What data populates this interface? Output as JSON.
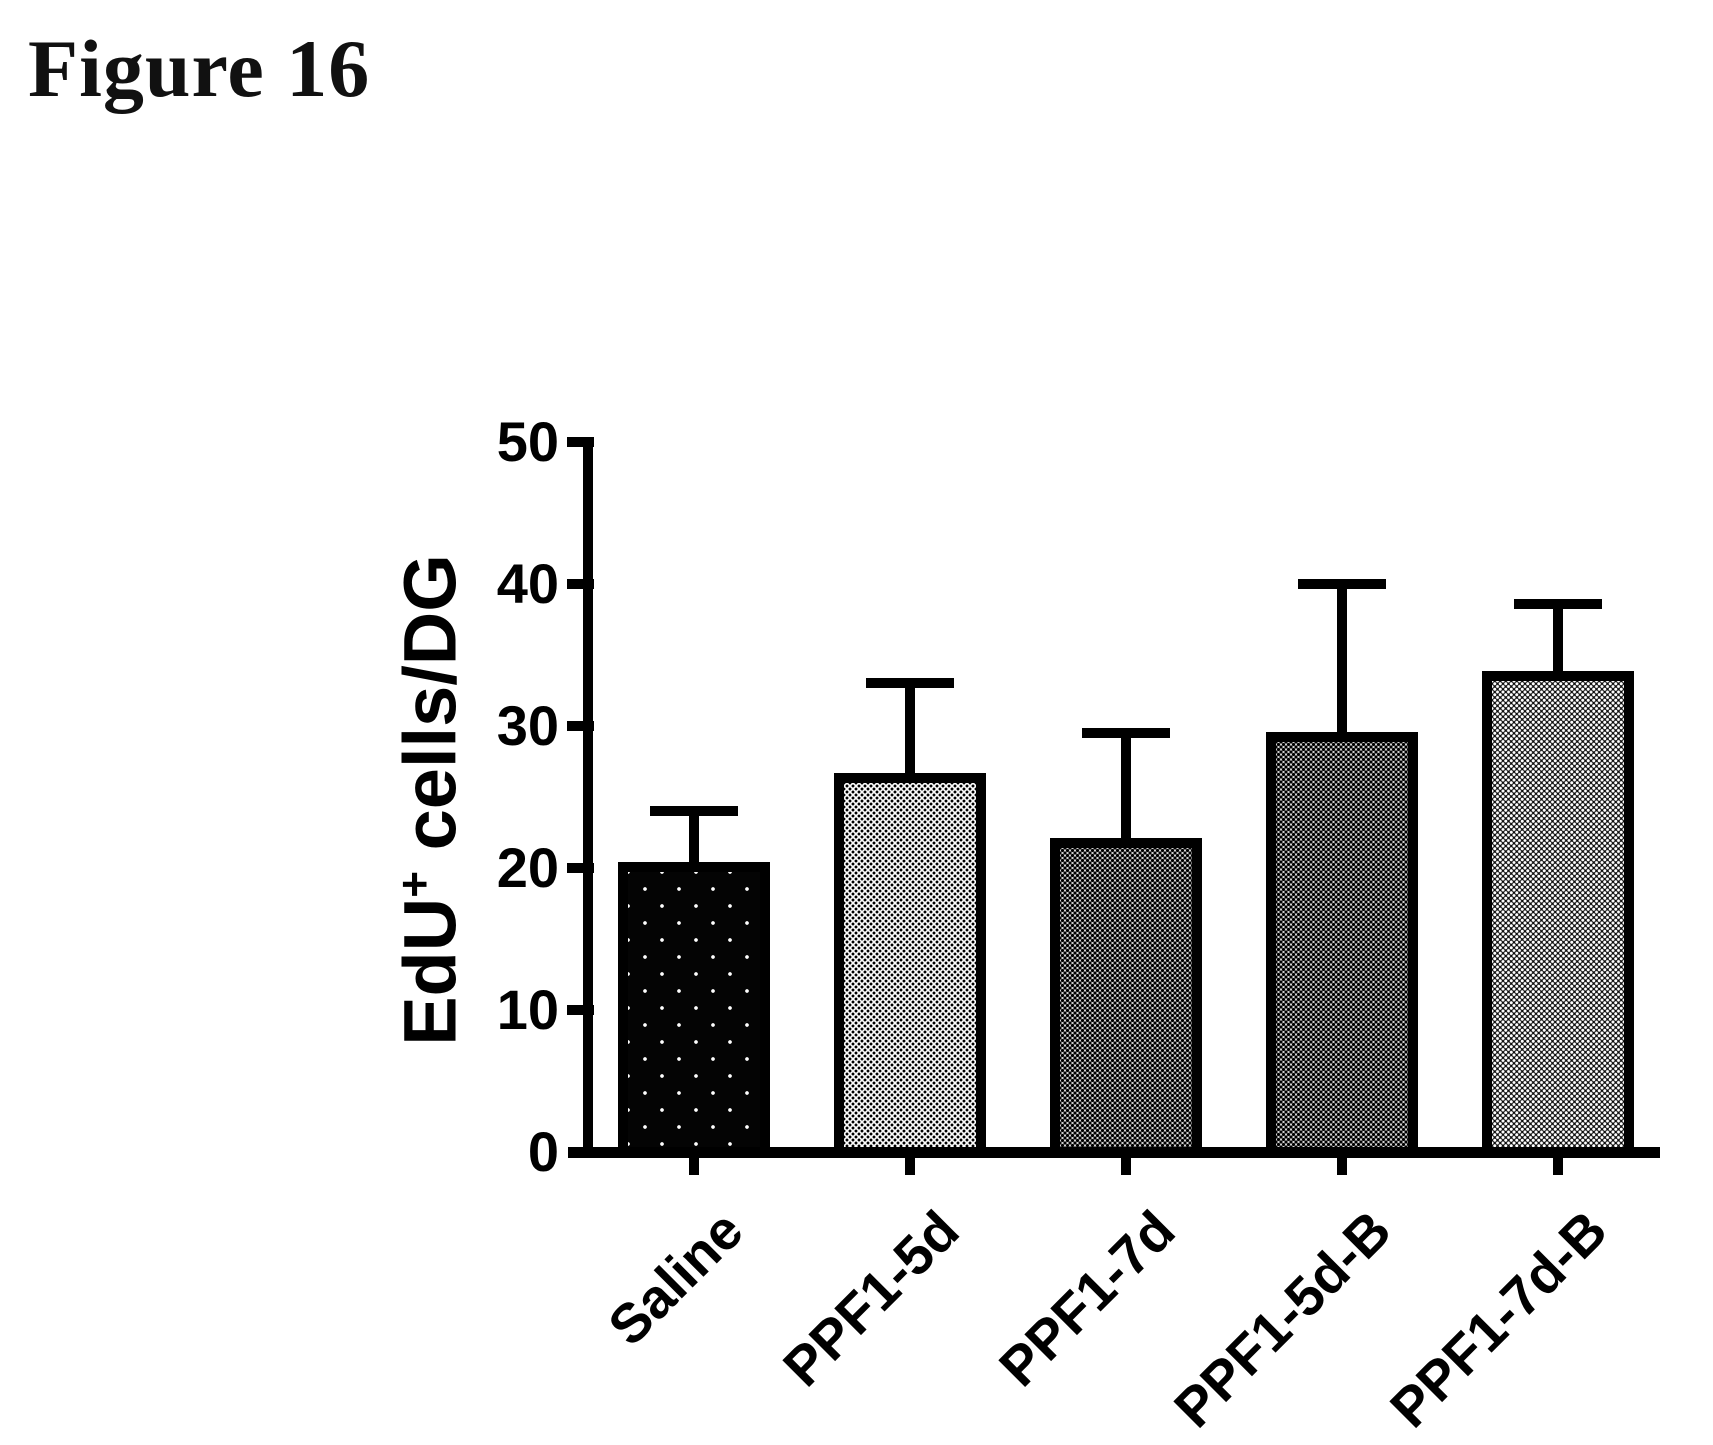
{
  "figure": {
    "title": "Figure 16"
  },
  "chart_data": {
    "type": "bar",
    "title": "",
    "xlabel": "",
    "ylabel": "EdU+ cells/DG",
    "ylabel_pre": "EdU",
    "ylabel_sup": "+",
    "ylabel_post": " cells/DG",
    "ylim": [
      0,
      50
    ],
    "yticks": [
      0,
      10,
      20,
      30,
      40,
      50
    ],
    "grid": false,
    "legend": "none",
    "categories": [
      "Saline",
      "PPF1-5d",
      "PPF1-7d",
      "PPF1-5d-B",
      "PPF1-7d-B"
    ],
    "values": [
      20.4,
      26.7,
      22.1,
      29.6,
      33.9
    ],
    "errors_plus": [
      3.6,
      6.3,
      7.4,
      10.4,
      4.7
    ],
    "error_tops": [
      24.0,
      33.0,
      29.5,
      40.0,
      38.6
    ],
    "bar_fills": [
      "black-speckle",
      "light-stipple",
      "medium-stipple",
      "medium-stipple",
      "dark-stipple"
    ],
    "bar_border_color": "#000000",
    "error_bar_color": "#000000",
    "axis_color": "#000000",
    "background_color": "#ffffff"
  }
}
